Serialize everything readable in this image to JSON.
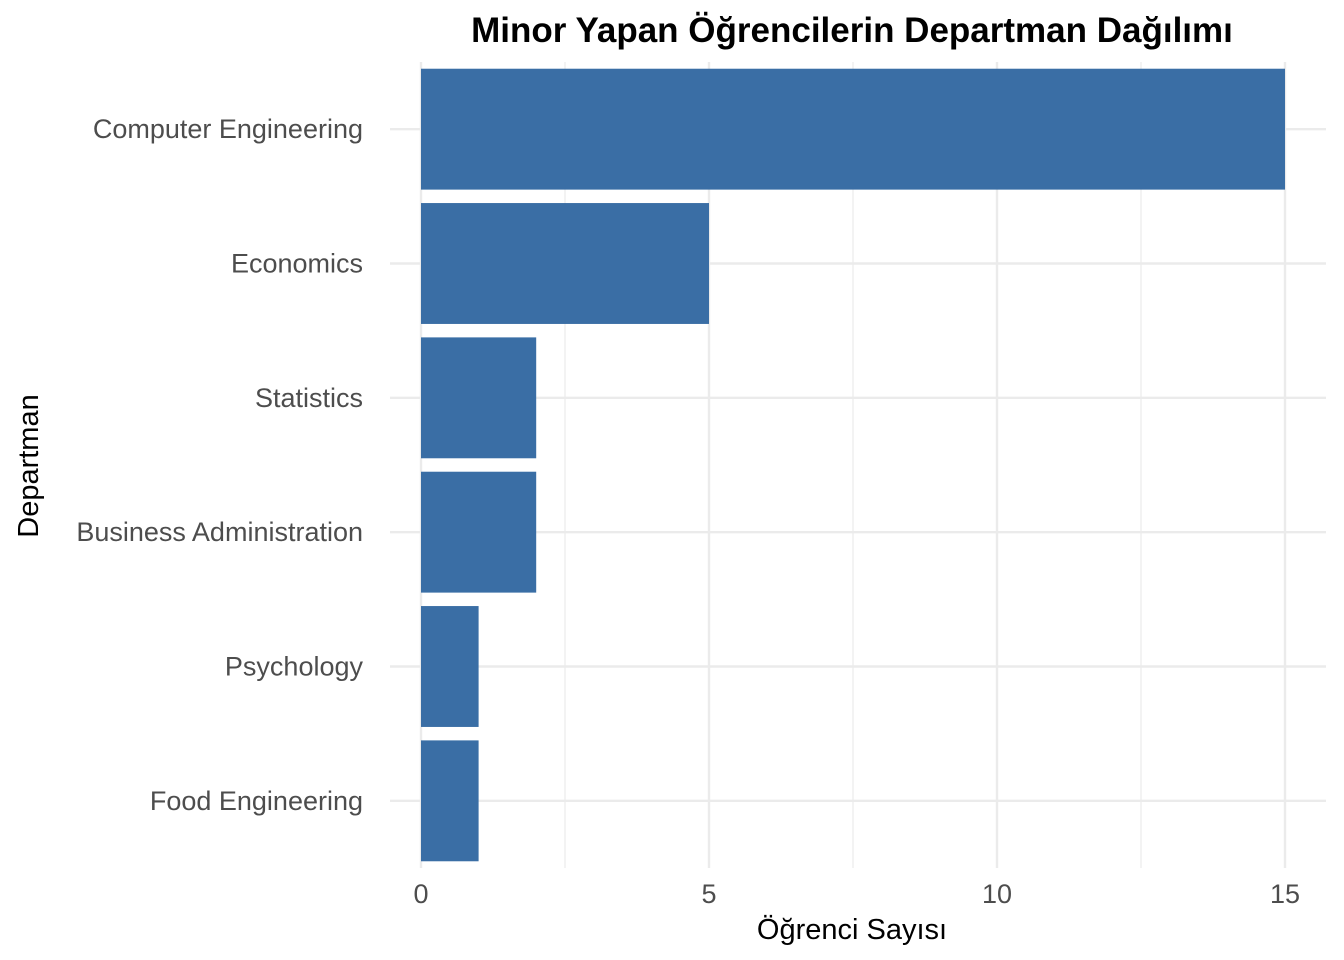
{
  "chart_data": {
    "type": "bar",
    "orientation": "horizontal",
    "title": "Minor Yapan Öğrencilerin Departman Dağılımı",
    "xlabel": "Öğrenci Sayısı",
    "ylabel": "Departman",
    "categories": [
      "Computer Engineering",
      "Economics",
      "Statistics",
      "Business Administration",
      "Psychology",
      "Food Engineering"
    ],
    "values": [
      15,
      5,
      2,
      2,
      1,
      1
    ],
    "xlim": [
      0,
      15.7
    ],
    "x_ticks": [
      0,
      5,
      10,
      15
    ],
    "x_tick_labels": [
      "0",
      "5",
      "10",
      "15"
    ],
    "grid": true,
    "legend": "none",
    "bar_color": "#3a6ea5",
    "grid_color": "#ebebeb"
  }
}
